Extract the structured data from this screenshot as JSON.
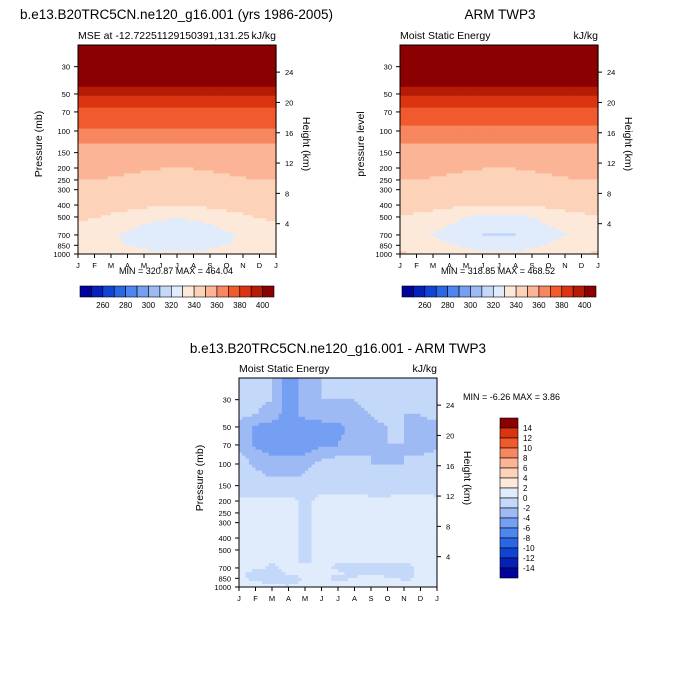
{
  "figure": {
    "top_left_title": "b.e13.B20TRC5CN.ne120_g16.001 (yrs 1986-2005)",
    "top_right_title": "ARM TWP3",
    "bottom_title": "b.e13.B20TRC5CN.ne120_g16.001 - ARM TWP3"
  },
  "colors": {
    "abs_levels": [
      250,
      260,
      270,
      280,
      290,
      300,
      310,
      320,
      330,
      340,
      350,
      360,
      370,
      380,
      390,
      400
    ],
    "abs_palette": [
      "#00049b",
      "#0521b8",
      "#1044d4",
      "#2b66e6",
      "#4d86f0",
      "#749ff2",
      "#9ebaf5",
      "#c4d8fa",
      "#e0ebfc",
      "#fde9d9",
      "#fcd2b8",
      "#fbb496",
      "#f7875e",
      "#f05a2c",
      "#da3410",
      "#b61b05",
      "#8b0000"
    ],
    "diff_levels": [
      -14,
      -12,
      -10,
      -8,
      -6,
      -4,
      -2,
      0,
      2,
      4,
      6,
      8,
      10,
      12,
      14
    ],
    "diff_palette": [
      "#00049b",
      "#0521b8",
      "#1044d4",
      "#2b66e6",
      "#4d86f0",
      "#749ff2",
      "#9ebaf5",
      "#c4d8fa",
      "#e0ebfc",
      "#fde9d9",
      "#fcd2b8",
      "#fbb496",
      "#f7875e",
      "#f05a2c",
      "#da3410",
      "#8b0000"
    ]
  },
  "chart_data": [
    {
      "type": "heatmap",
      "panel": "model",
      "title": "b.e13.B20TRC5CN.ne120_g16.001 (yrs 1986-2005)",
      "left_label": "MSE at -12.72251129150391,131.25",
      "right_label": "kJ/kg",
      "minmax": "MIN = 320.87  MAX = 464.04",
      "ylabel": "Pressure (mb)",
      "y2label": "Height (km)",
      "x": [
        "J",
        "F",
        "M",
        "A",
        "M",
        "J",
        "J",
        "A",
        "S",
        "O",
        "N",
        "D",
        "J"
      ],
      "y_pressure": [
        1000,
        850,
        700,
        500,
        400,
        300,
        250,
        200,
        150,
        100,
        70,
        50,
        30
      ],
      "y_ticks": [
        "30",
        "50",
        "70",
        "100",
        "150",
        "200",
        "250",
        "300",
        "400",
        "500",
        "700",
        "850",
        "1000"
      ],
      "height_ticks": [
        "4",
        "8",
        "12",
        "16",
        "20",
        "24"
      ],
      "height_values": [
        4,
        8,
        12,
        16,
        20,
        24
      ],
      "ylim_mb": [
        1000,
        20
      ],
      "profile_pressure": [
        1000,
        850,
        700,
        500,
        400,
        300,
        250,
        200,
        150,
        120,
        100,
        85,
        70,
        55,
        45,
        30,
        20
      ],
      "profile_values": [
        336,
        330,
        328,
        336,
        343,
        347,
        349,
        351,
        355,
        362,
        368,
        373,
        378,
        386,
        398,
        430,
        464
      ],
      "seasonal_amp": [
        5,
        4,
        7,
        5,
        2,
        1,
        1,
        1,
        1,
        0,
        0,
        0,
        0,
        0,
        0,
        0,
        0
      ],
      "cbar_labels": [
        "260",
        "280",
        "300",
        "320",
        "340",
        "360",
        "380",
        "400"
      ]
    },
    {
      "type": "heatmap",
      "panel": "obs",
      "title": "ARM TWP3",
      "left_label": "Moist Static Energy",
      "right_label": "kJ/kg",
      "minmax": "MIN = 318.85  MAX = 468.52",
      "ylabel": "pressure level",
      "y2label": "Height (km)",
      "x": [
        "J",
        "F",
        "M",
        "A",
        "M",
        "J",
        "J",
        "A",
        "S",
        "O",
        "N",
        "D",
        "J"
      ],
      "y_pressure": [
        1000,
        850,
        700,
        500,
        400,
        300,
        250,
        200,
        150,
        100,
        70,
        50,
        30
      ],
      "y_ticks": [
        "30",
        "50",
        "70",
        "100",
        "150",
        "200",
        "250",
        "300",
        "400",
        "500",
        "700",
        "850",
        "1000"
      ],
      "height_ticks": [
        "4",
        "8",
        "12",
        "16",
        "20",
        "24"
      ],
      "height_values": [
        4,
        8,
        12,
        16,
        20,
        24
      ],
      "ylim_mb": [
        1000,
        20
      ],
      "profile_pressure": [
        1000,
        850,
        700,
        500,
        400,
        300,
        250,
        200,
        150,
        120,
        100,
        85,
        70,
        55,
        45,
        30,
        20
      ],
      "profile_values": [
        336,
        331,
        326,
        333,
        342,
        347,
        349,
        351,
        355,
        361,
        367,
        372,
        377,
        385,
        397,
        430,
        468
      ],
      "seasonal_amp": [
        5,
        5,
        7,
        6,
        2,
        1,
        1,
        1,
        1,
        0,
        0,
        0,
        0,
        0,
        0,
        0,
        0
      ],
      "cbar_labels": [
        "260",
        "280",
        "300",
        "320",
        "340",
        "360",
        "380",
        "400"
      ]
    },
    {
      "type": "heatmap",
      "panel": "difference",
      "title": "b.e13.B20TRC5CN.ne120_g16.001 - ARM TWP3",
      "left_label": "Moist Static Energy",
      "right_label": "kJ/kg",
      "minmax": "MIN = -6.26  MAX =  3.86",
      "ylabel": "Pressure (mb)",
      "y2label": "Height (km)",
      "x": [
        "J",
        "F",
        "M",
        "A",
        "M",
        "J",
        "J",
        "A",
        "S",
        "O",
        "N",
        "D",
        "J"
      ],
      "y_pressure": [
        1000,
        850,
        700,
        500,
        400,
        300,
        250,
        200,
        150,
        100,
        70,
        50,
        30
      ],
      "y_ticks": [
        "30",
        "50",
        "70",
        "100",
        "150",
        "200",
        "250",
        "300",
        "400",
        "500",
        "700",
        "850",
        "1000"
      ],
      "height_ticks": [
        "4",
        "8",
        "12",
        "16",
        "20",
        "24"
      ],
      "height_values": [
        4,
        8,
        12,
        16,
        20,
        24
      ],
      "ylim_mb": [
        1000,
        20
      ],
      "cbar_labels": [
        "14",
        "12",
        "10",
        "8",
        "6",
        "4",
        "2",
        "0",
        "-2",
        "-4",
        "-6",
        "-8",
        "-10",
        "-12",
        "-14"
      ],
      "grid_pressure": [
        1000,
        925,
        850,
        775,
        700,
        600,
        500,
        400,
        300,
        250,
        200,
        150,
        120,
        100,
        85,
        70,
        50,
        40,
        30,
        20
      ],
      "grid_values": [
        [
          2,
          2,
          1,
          0.5,
          1,
          2,
          0.5,
          2,
          1,
          0.5,
          2,
          1,
          2
        ],
        [
          1,
          0.5,
          -0.5,
          -1,
          0.5,
          1,
          0.5,
          0.5,
          1,
          1,
          0.5,
          0.5,
          1
        ],
        [
          0.5,
          -1,
          -1,
          -1.5,
          0.5,
          0.5,
          -1,
          0.5,
          1,
          0.5,
          -0.5,
          0.5,
          1
        ],
        [
          0.5,
          -1,
          -1.5,
          0.5,
          0.5,
          0.5,
          0.5,
          -1,
          -1,
          -1,
          -1,
          0.5,
          0.5
        ],
        [
          0.5,
          0.5,
          -0.5,
          0.5,
          0.5,
          0.5,
          -0.5,
          -1,
          -1,
          -1,
          -1,
          0.5,
          1
        ],
        [
          0.5,
          0.5,
          0.5,
          0.5,
          -0.5,
          0.5,
          0.5,
          0.5,
          0.5,
          0.5,
          0.5,
          0.5,
          0.5
        ],
        [
          0.5,
          0.5,
          0.5,
          0.5,
          -0.5,
          0.5,
          0.5,
          0.5,
          0.5,
          0.5,
          0.5,
          0.5,
          0.5
        ],
        [
          0.5,
          0.5,
          0.5,
          0.5,
          -0.5,
          0.5,
          0.5,
          0.5,
          0.5,
          0.5,
          0.5,
          0.5,
          0.5
        ],
        [
          0.5,
          0.5,
          0.5,
          0.5,
          -0.5,
          0.5,
          0.5,
          0.5,
          0.5,
          0.5,
          0.5,
          0.5,
          0.5
        ],
        [
          0.5,
          0.5,
          0.5,
          0.5,
          -0.5,
          0.5,
          0.5,
          0.5,
          0.5,
          0.5,
          0.5,
          0.5,
          0.5
        ],
        [
          0.5,
          0.5,
          0.5,
          0.5,
          -0.5,
          0.5,
          0.5,
          0.5,
          0.5,
          0.5,
          0.5,
          0.5,
          0.5
        ],
        [
          -1,
          -1,
          -1,
          -1,
          -1,
          -0.5,
          -0.5,
          -0.5,
          -1,
          -1,
          -0.5,
          -0.5,
          -1
        ],
        [
          -1,
          -1.5,
          -2.5,
          -2.5,
          -2,
          -1,
          -1,
          -1,
          -1.5,
          -1.5,
          -1.5,
          -1,
          -1
        ],
        [
          -1,
          -2.5,
          -3,
          -3,
          -2.5,
          -1.5,
          -1.5,
          -1.5,
          -2,
          -2,
          -2,
          -1.5,
          -1
        ],
        [
          -1.5,
          -3,
          -4,
          -4,
          -4,
          -2.5,
          -2,
          -2,
          -2,
          -2.5,
          -2,
          -2,
          -1.5
        ],
        [
          -2.5,
          -4.5,
          -5,
          -5,
          -5,
          -4.5,
          -4,
          -3,
          -2.5,
          -2,
          -2,
          -2.5,
          -2.5
        ],
        [
          -2.5,
          -4.5,
          -5,
          -5.5,
          -5,
          -5,
          -4.5,
          -3.5,
          -2.5,
          -2,
          -2,
          -2.5,
          -2.5
        ],
        [
          -1.5,
          -2,
          -3,
          -5,
          -3.5,
          -3,
          -3,
          -2.5,
          -2,
          -1.5,
          -2,
          -2,
          -1.5
        ],
        [
          -1.5,
          -1.5,
          -2,
          -6,
          -2.5,
          -2,
          -2,
          -2,
          -1.5,
          -1.5,
          -2,
          -1.5,
          -1.5
        ],
        [
          -1.5,
          -1.5,
          -2,
          -6,
          -2,
          -2,
          -1.5,
          -1.5,
          -1.5,
          -1.5,
          -1.5,
          -1.5,
          -1.5
        ]
      ]
    }
  ]
}
